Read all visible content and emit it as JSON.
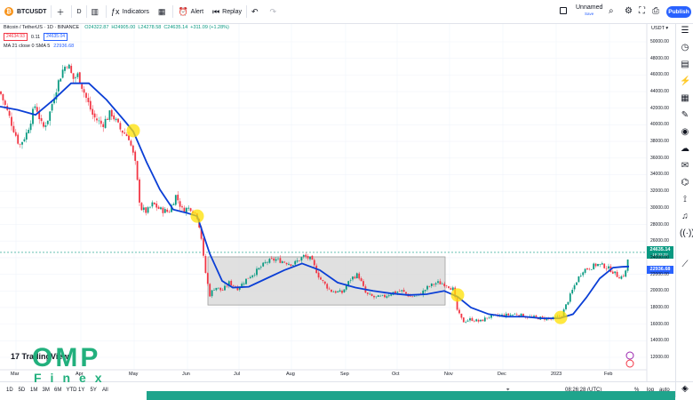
{
  "toolbar": {
    "symbol": "BTCUSDT",
    "interval": "D",
    "indicators_label": "Indicators",
    "alert_label": "Alert",
    "replay_label": "Replay",
    "layout_name": "Unnamed",
    "layout_status": "Save",
    "publish_label": "Publish"
  },
  "legend": {
    "title": "Bitcoin / TetherUS · 1D · BINANCE",
    "open": "O24322.87",
    "high": "H24905.00",
    "low": "L24278.58",
    "close": "C24635.14",
    "change": "+311.09 (+1.28%)",
    "bid": "24634.93",
    "spread": "0.11",
    "ask": "24635.04",
    "ma_label": "MA 21 close 0 SMA 5",
    "ma_value": "22936.68"
  },
  "currency": "USDT",
  "colors": {
    "up": "#089981",
    "down": "#f23645",
    "ma": "#0b3fd6",
    "highlight": "#ffe000",
    "box": "#d6d6d6",
    "accent": "#2962ff"
  },
  "price_axis": {
    "labels": [
      "50000.00",
      "48000.00",
      "46000.00",
      "44000.00",
      "42000.00",
      "40000.00",
      "38000.00",
      "36000.00",
      "34000.00",
      "32000.00",
      "30000.00",
      "28000.00",
      "26000.00",
      "24000.00",
      "22000.00",
      "20000.00",
      "18000.00",
      "16000.00",
      "14000.00",
      "12000.00"
    ],
    "last_price": "24635.14",
    "countdown": "15:33:32",
    "ma_price": "22936.68"
  },
  "time_axis": [
    "Mar",
    "Apr",
    "May",
    "Jun",
    "Jul",
    "Aug",
    "Sep",
    "Oct",
    "Nov",
    "Dec",
    "2023",
    "Feb"
  ],
  "bottom": {
    "ranges": [
      "1D",
      "5D",
      "1M",
      "3M",
      "6M",
      "YTD",
      "1Y",
      "5Y",
      "All"
    ],
    "clock": "08:26:28 (UTC)",
    "percent": "%",
    "log": "log",
    "auto": "auto"
  },
  "watermark": {
    "brand": "TradingView",
    "omp": "OMP",
    "finex": "Finex"
  },
  "chart_data": {
    "type": "candlestick",
    "symbol": "BTCUSDT",
    "timeframe": "1D",
    "ylim": [
      11000,
      51500
    ],
    "x_labels": [
      "Mar",
      "Apr",
      "May",
      "Jun",
      "Jul",
      "Aug",
      "Sep",
      "Oct",
      "Nov",
      "Dec",
      "2023",
      "Feb"
    ],
    "close_path": [
      [
        0,
        44000
      ],
      [
        12,
        40500
      ],
      [
        22,
        37500
      ],
      [
        30,
        39000
      ],
      [
        40,
        42500
      ],
      [
        48,
        39500
      ],
      [
        55,
        41000
      ],
      [
        62,
        44000
      ],
      [
        70,
        46500
      ],
      [
        76,
        47500
      ],
      [
        82,
        45500
      ],
      [
        88,
        46000
      ],
      [
        96,
        43500
      ],
      [
        105,
        41000
      ],
      [
        115,
        40000
      ],
      [
        125,
        41500
      ],
      [
        135,
        39500
      ],
      [
        145,
        38500
      ],
      [
        152,
        35500
      ],
      [
        158,
        30000
      ],
      [
        165,
        29500
      ],
      [
        172,
        30500
      ],
      [
        180,
        29800
      ],
      [
        190,
        29500
      ],
      [
        198,
        31500
      ],
      [
        205,
        29800
      ],
      [
        215,
        30000
      ],
      [
        222,
        29000
      ],
      [
        226,
        27000
      ],
      [
        230,
        23000
      ],
      [
        236,
        19500
      ],
      [
        242,
        20500
      ],
      [
        250,
        20000
      ],
      [
        258,
        21000
      ],
      [
        268,
        20300
      ],
      [
        278,
        21500
      ],
      [
        290,
        22500
      ],
      [
        300,
        23500
      ],
      [
        310,
        23800
      ],
      [
        320,
        23500
      ],
      [
        330,
        23200
      ],
      [
        342,
        24200
      ],
      [
        350,
        23800
      ],
      [
        360,
        21500
      ],
      [
        372,
        20000
      ],
      [
        385,
        19800
      ],
      [
        395,
        21500
      ],
      [
        403,
        22000
      ],
      [
        412,
        19600
      ],
      [
        422,
        19200
      ],
      [
        432,
        19300
      ],
      [
        442,
        19800
      ],
      [
        452,
        20000
      ],
      [
        462,
        19300
      ],
      [
        472,
        19500
      ],
      [
        482,
        20500
      ],
      [
        492,
        21000
      ],
      [
        502,
        20800
      ],
      [
        510,
        20200
      ],
      [
        515,
        17500
      ],
      [
        521,
        16300
      ],
      [
        530,
        16600
      ],
      [
        540,
        16300
      ],
      [
        550,
        16900
      ],
      [
        560,
        17000
      ],
      [
        572,
        17100
      ],
      [
        582,
        17200
      ],
      [
        592,
        16900
      ],
      [
        602,
        16800
      ],
      [
        612,
        16700
      ],
      [
        622,
        16600
      ],
      [
        632,
        17000
      ],
      [
        640,
        19000
      ],
      [
        648,
        21000
      ],
      [
        656,
        22500
      ],
      [
        664,
        22800
      ],
      [
        672,
        23200
      ],
      [
        680,
        23000
      ],
      [
        688,
        22500
      ],
      [
        695,
        21800
      ],
      [
        700,
        21700
      ],
      [
        704,
        22200
      ],
      [
        708,
        24635
      ]
    ],
    "ma_series": {
      "name": "MA 21",
      "points": [
        [
          0,
          42200
        ],
        [
          20,
          41800
        ],
        [
          40,
          41200
        ],
        [
          60,
          43000
        ],
        [
          80,
          45000
        ],
        [
          100,
          45000
        ],
        [
          120,
          43000
        ],
        [
          140,
          40500
        ],
        [
          150,
          39200
        ],
        [
          165,
          35500
        ],
        [
          180,
          32200
        ],
        [
          195,
          29800
        ],
        [
          210,
          29400
        ],
        [
          222,
          29000
        ],
        [
          236,
          24500
        ],
        [
          250,
          21200
        ],
        [
          262,
          20400
        ],
        [
          280,
          20500
        ],
        [
          300,
          21500
        ],
        [
          320,
          22500
        ],
        [
          340,
          23300
        ],
        [
          360,
          22500
        ],
        [
          380,
          21000
        ],
        [
          400,
          20400
        ],
        [
          420,
          20000
        ],
        [
          440,
          19700
        ],
        [
          460,
          19500
        ],
        [
          480,
          19600
        ],
        [
          500,
          20000
        ],
        [
          515,
          19300
        ],
        [
          530,
          18000
        ],
        [
          550,
          17200
        ],
        [
          570,
          16900
        ],
        [
          590,
          16900
        ],
        [
          610,
          16700
        ],
        [
          630,
          16700
        ],
        [
          645,
          17200
        ],
        [
          660,
          19200
        ],
        [
          675,
          21500
        ],
        [
          690,
          22800
        ],
        [
          700,
          22900
        ],
        [
          708,
          22937
        ]
      ]
    },
    "consolidation_box": {
      "x_from": 234,
      "x_to": 501,
      "y_from": 18300,
      "y_to": 24100
    },
    "highlights": [
      [
        150,
        39300
      ],
      [
        222,
        29000
      ],
      [
        515,
        19500
      ],
      [
        631,
        16800
      ]
    ]
  }
}
